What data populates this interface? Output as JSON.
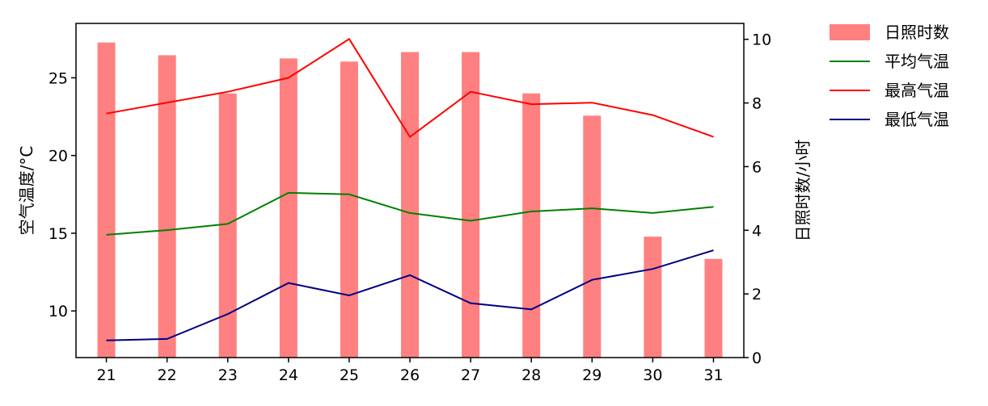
{
  "chart_data": {
    "type": "bar",
    "x": [
      "21",
      "22",
      "23",
      "24",
      "25",
      "26",
      "27",
      "28",
      "29",
      "30",
      "31"
    ],
    "left_axis": {
      "label": "空气温度/°C",
      "ylim": [
        7,
        28.5
      ],
      "ticks": [
        10,
        15,
        20,
        25
      ]
    },
    "right_axis": {
      "label": "日照时数/小时",
      "ylim": [
        0,
        10.5
      ],
      "ticks": [
        0,
        2,
        4,
        6,
        8,
        10
      ]
    },
    "bars": {
      "name": "日照时数",
      "axis": "right",
      "color": "#ff8080",
      "values": [
        9.9,
        9.5,
        8.3,
        9.4,
        9.3,
        9.6,
        9.6,
        8.3,
        7.6,
        3.8,
        3.1
      ]
    },
    "series": [
      {
        "name": "平均气温",
        "axis": "left",
        "color": "#008000",
        "values": [
          14.9,
          15.2,
          15.6,
          17.6,
          17.5,
          16.3,
          15.8,
          16.4,
          16.6,
          16.3,
          16.7
        ]
      },
      {
        "name": "最高气温",
        "axis": "left",
        "color": "#ff0000",
        "values": [
          22.7,
          23.4,
          24.1,
          25.0,
          27.5,
          21.2,
          24.1,
          23.3,
          23.4,
          22.6,
          21.2
        ]
      },
      {
        "name": "最低气温",
        "axis": "left",
        "color": "#000080",
        "values": [
          8.1,
          8.2,
          9.8,
          11.8,
          11.0,
          12.3,
          10.5,
          10.1,
          12.0,
          12.7,
          13.9
        ]
      }
    ],
    "legend_position": "outside-top-right",
    "grid": false
  }
}
